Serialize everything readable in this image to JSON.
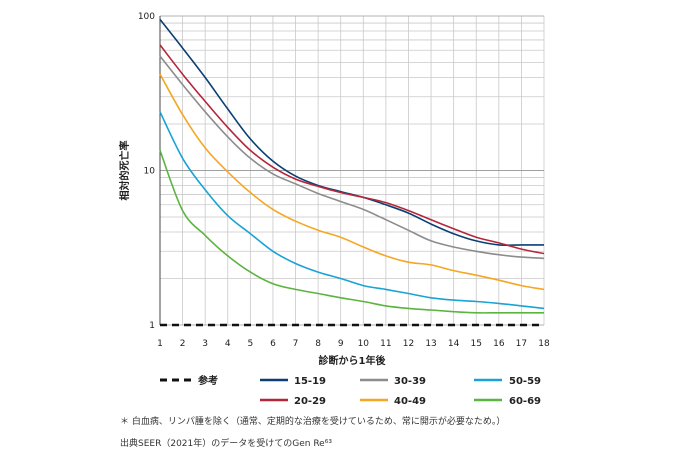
{
  "chart_data": {
    "type": "line",
    "title": "",
    "xlabel": "診断から1年後",
    "ylabel": "相対的死亡率",
    "x": [
      1,
      2,
      3,
      4,
      5,
      6,
      7,
      8,
      9,
      10,
      11,
      12,
      13,
      14,
      15,
      16,
      17,
      18
    ],
    "xlim": [
      1,
      18
    ],
    "ylim": [
      1,
      100
    ],
    "yscale": "log",
    "yticks": [
      "1",
      "10",
      "100"
    ],
    "grid": true,
    "legend_position": "bottom",
    "reference": {
      "name": "参考",
      "value": 1,
      "color": "#111111",
      "style": "dashed"
    },
    "series": [
      {
        "name": "15-19",
        "color": "#0b3f73",
        "values": [
          95,
          62,
          40,
          25,
          16,
          11.5,
          9.2,
          8.0,
          7.3,
          6.7,
          6.0,
          5.3,
          4.5,
          3.9,
          3.5,
          3.3,
          3.3,
          3.3
        ]
      },
      {
        "name": "20-29",
        "color": "#b5263a",
        "values": [
          65,
          42,
          28,
          19,
          13.5,
          10.5,
          8.8,
          7.9,
          7.2,
          6.7,
          6.2,
          5.5,
          4.8,
          4.2,
          3.7,
          3.4,
          3.1,
          2.9
        ]
      },
      {
        "name": "30-39",
        "color": "#8c8c8c",
        "values": [
          55,
          36,
          24,
          16.5,
          12,
          9.5,
          8.2,
          7.1,
          6.3,
          5.6,
          4.8,
          4.1,
          3.5,
          3.2,
          3.0,
          2.85,
          2.75,
          2.7
        ]
      },
      {
        "name": "40-49",
        "color": "#f5a623",
        "values": [
          42,
          23,
          14,
          9.8,
          7.2,
          5.6,
          4.7,
          4.1,
          3.7,
          3.2,
          2.8,
          2.55,
          2.45,
          2.25,
          2.1,
          1.95,
          1.8,
          1.7
        ]
      },
      {
        "name": "50-59",
        "color": "#1aa3d4",
        "values": [
          24,
          12,
          7.5,
          5.1,
          3.9,
          3.0,
          2.5,
          2.2,
          2.0,
          1.8,
          1.7,
          1.6,
          1.5,
          1.45,
          1.42,
          1.38,
          1.33,
          1.28
        ]
      },
      {
        "name": "60-69",
        "color": "#5cb440",
        "values": [
          13.5,
          5.5,
          3.8,
          2.8,
          2.2,
          1.85,
          1.7,
          1.6,
          1.5,
          1.42,
          1.33,
          1.28,
          1.25,
          1.22,
          1.2,
          1.2,
          1.2,
          1.2
        ]
      }
    ]
  },
  "footnotes": {
    "note": "＊ 白血病、リンパ腫を除く（通常、定期的な治療を受けているため、常に開示が必要なため。）",
    "source": "出典SEER（2021年）のデータを受けてのGen Re⁶³"
  }
}
